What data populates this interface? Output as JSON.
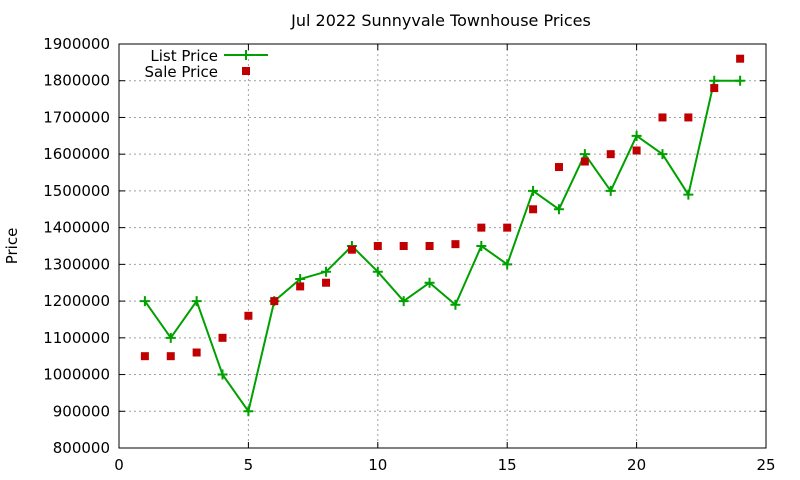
{
  "chart_data": {
    "type": "line",
    "title": "Jul 2022 Sunnyvale Townhouse Prices",
    "xlabel": "",
    "ylabel": "Price",
    "xlim": [
      0,
      25
    ],
    "ylim": [
      800000,
      1900000
    ],
    "xticks": [
      0,
      5,
      10,
      15,
      20,
      25
    ],
    "yticks": [
      800000,
      900000,
      1000000,
      1100000,
      1200000,
      1300000,
      1400000,
      1500000,
      1600000,
      1700000,
      1800000,
      1900000
    ],
    "grid": true,
    "legend_position": "top-left",
    "series": [
      {
        "name": "List Price",
        "style": "line-with-plus-markers",
        "color": "#00a000",
        "x": [
          1,
          2,
          3,
          4,
          5,
          6,
          7,
          8,
          9,
          10,
          11,
          12,
          13,
          14,
          15,
          16,
          17,
          18,
          19,
          20,
          21,
          22,
          23,
          24
        ],
        "values": [
          1200000,
          1100000,
          1200000,
          1000000,
          900000,
          1200000,
          1260000,
          1280000,
          1350000,
          1280000,
          1200000,
          1250000,
          1190000,
          1350000,
          1300000,
          1500000,
          1450000,
          1600000,
          1500000,
          1650000,
          1600000,
          1490000,
          1800000,
          1800000
        ]
      },
      {
        "name": "Sale Price",
        "style": "square-markers",
        "color": "#c00000",
        "x": [
          1,
          2,
          3,
          4,
          5,
          6,
          7,
          8,
          9,
          10,
          11,
          12,
          13,
          14,
          15,
          16,
          17,
          18,
          19,
          20,
          21,
          22,
          23,
          24
        ],
        "values": [
          1050000,
          1050000,
          1060000,
          1100000,
          1160000,
          1200000,
          1240000,
          1250000,
          1340000,
          1350000,
          1350000,
          1350000,
          1355000,
          1400000,
          1400000,
          1450000,
          1565000,
          1580000,
          1600000,
          1610000,
          1700000,
          1700000,
          1780000,
          1860000
        ]
      }
    ]
  }
}
